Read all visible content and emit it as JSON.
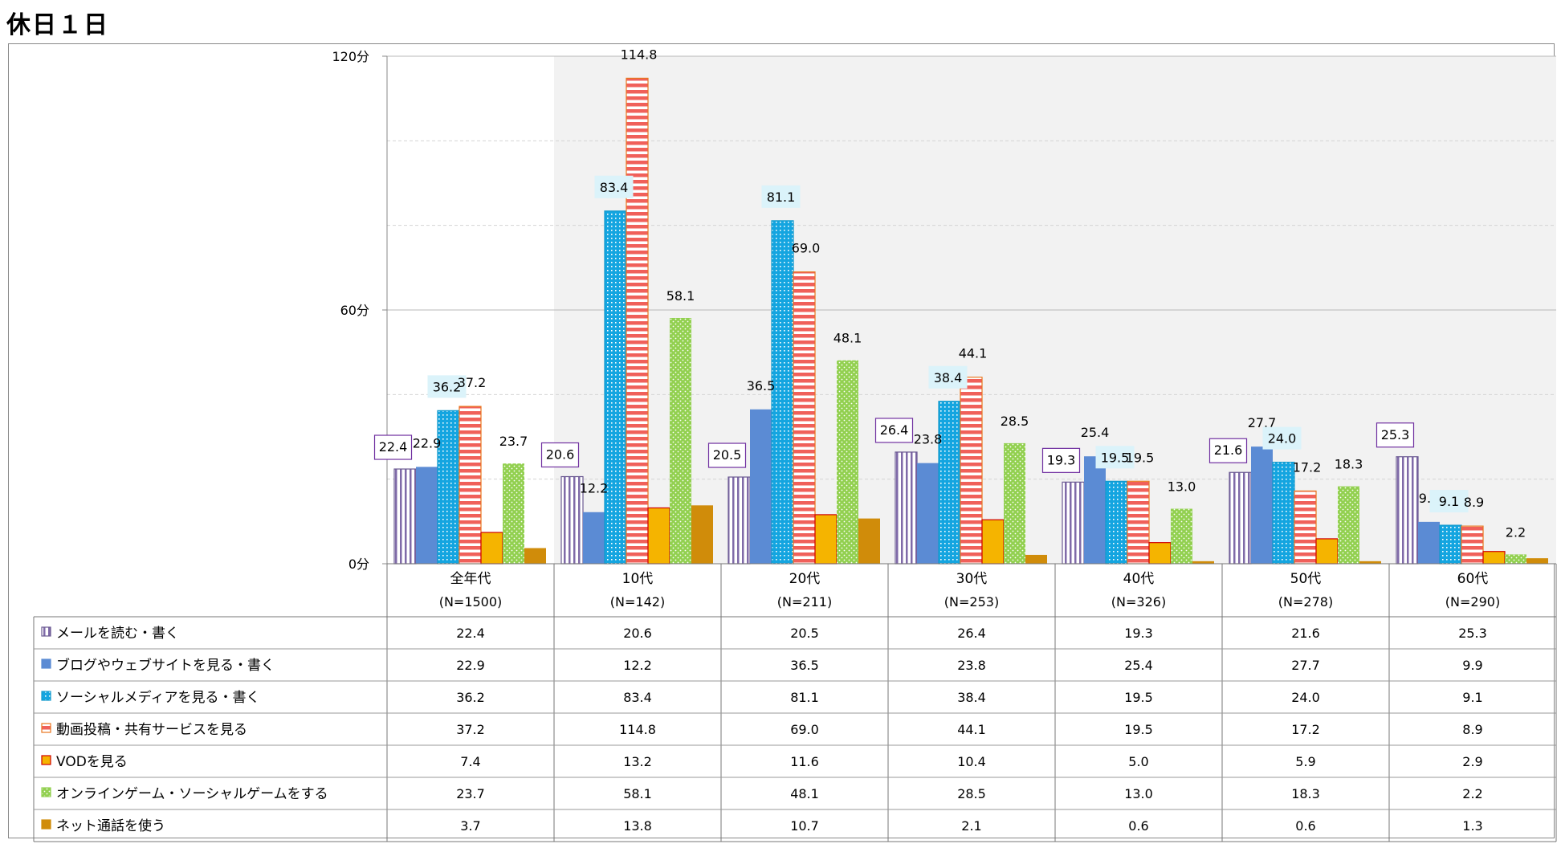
{
  "page": {
    "title": "休日１日"
  },
  "colors": {
    "mail": "#7f6aa8",
    "blog": "#5b8bd4",
    "sns": "#14a5e0",
    "video": "#f0605a",
    "vod": "#f5b400",
    "game": "#92d050",
    "call": "#d08c0a",
    "highlight_label_box": "#7030a0",
    "sns_label_bg": "#dbf3fa",
    "plot_shade": "#f2f2f2"
  },
  "chart_data": {
    "type": "bar",
    "yunit": "分",
    "ylim": [
      0,
      120
    ],
    "yticks": [
      {
        "value": 0,
        "label": "0分"
      },
      {
        "value": 60,
        "label": "60分"
      },
      {
        "value": 120,
        "label": "120分"
      }
    ],
    "categories": [
      {
        "name": "全年代",
        "n": "(N=1500)"
      },
      {
        "name": "10代",
        "n": "(N=142)"
      },
      {
        "name": "20代",
        "n": "(N=211)"
      },
      {
        "name": "30代",
        "n": "(N=253)"
      },
      {
        "name": "40代",
        "n": "(N=326)"
      },
      {
        "name": "50代",
        "n": "(N=278)"
      },
      {
        "name": "60代",
        "n": "(N=290)"
      }
    ],
    "series": [
      {
        "key": "mail",
        "name": "メールを読む・書く",
        "values": [
          "22.4",
          "20.6",
          "20.5",
          "26.4",
          "19.3",
          "21.6",
          "25.3"
        ]
      },
      {
        "key": "blog",
        "name": "ブログやウェブサイトを見る・書く",
        "values": [
          "22.9",
          "12.2",
          "36.5",
          "23.8",
          "25.4",
          "27.7",
          "9.9"
        ]
      },
      {
        "key": "sns",
        "name": "ソーシャルメディアを見る・書く",
        "values": [
          "36.2",
          "83.4",
          "81.1",
          "38.4",
          "19.5",
          "24.0",
          "9.1"
        ]
      },
      {
        "key": "video",
        "name": "動画投稿・共有サービスを見る",
        "values": [
          "37.2",
          "114.8",
          "69.0",
          "44.1",
          "19.5",
          "17.2",
          "8.9"
        ]
      },
      {
        "key": "vod",
        "name": "VODを見る",
        "values": [
          "7.4",
          "13.2",
          "11.6",
          "10.4",
          "5.0",
          "5.9",
          "2.9"
        ]
      },
      {
        "key": "game",
        "name": "オンラインゲーム・ソーシャルゲームをする",
        "values": [
          "23.7",
          "58.1",
          "48.1",
          "28.5",
          "13.0",
          "18.3",
          "2.2"
        ]
      },
      {
        "key": "call",
        "name": "ネット通話を使う",
        "values": [
          "3.7",
          "13.8",
          "10.7",
          "2.1",
          "0.6",
          "0.6",
          "1.3"
        ]
      }
    ],
    "labeled_series": [
      "mail",
      "blog",
      "sns",
      "video",
      "game"
    ]
  }
}
